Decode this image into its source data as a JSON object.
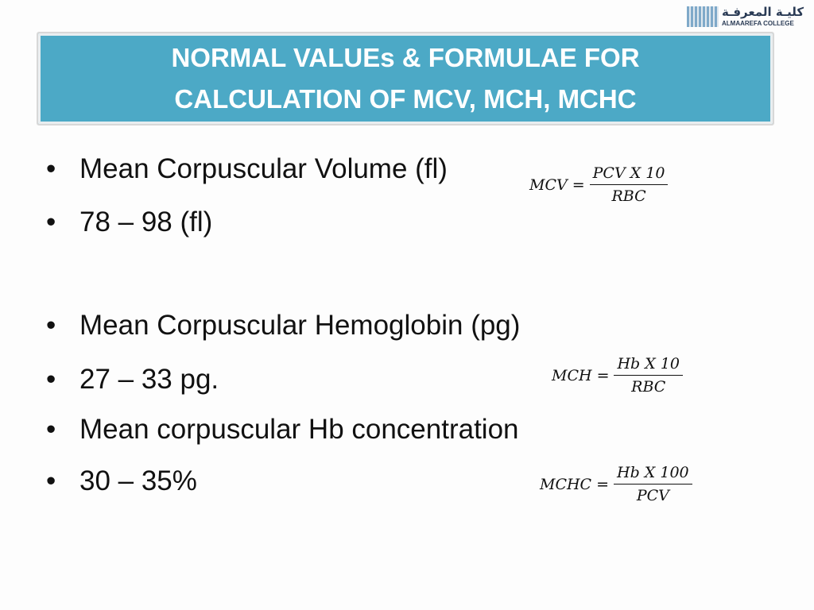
{
  "logo": {
    "arabic": "كليـة المعرفـة",
    "english": "ALMAAREFA COLLEGE"
  },
  "title": {
    "lines": [
      "NORMAL VALUEs & FORMULAE FOR",
      "CALCULATION OF MCV, MCH, MCHC"
    ]
  },
  "bullets": [
    "Mean Corpuscular Volume (fl)",
    "78 – 98 (fl)",
    "Mean Corpuscular Hemoglobin (pg)",
    "27 – 33 pg.",
    "Mean corpuscular Hb concentration",
    "30 – 35%"
  ],
  "formulas": [
    {
      "lhs": "MCV",
      "eq": "=",
      "numerator": "PCV X 10",
      "denominator": "RBC"
    },
    {
      "lhs": "MCH",
      "eq": "=",
      "numerator": "Hb X 10",
      "denominator": "RBC"
    },
    {
      "lhs": "MCHC",
      "eq": "=",
      "numerator": "Hb X 100",
      "denominator": "PCV"
    }
  ]
}
